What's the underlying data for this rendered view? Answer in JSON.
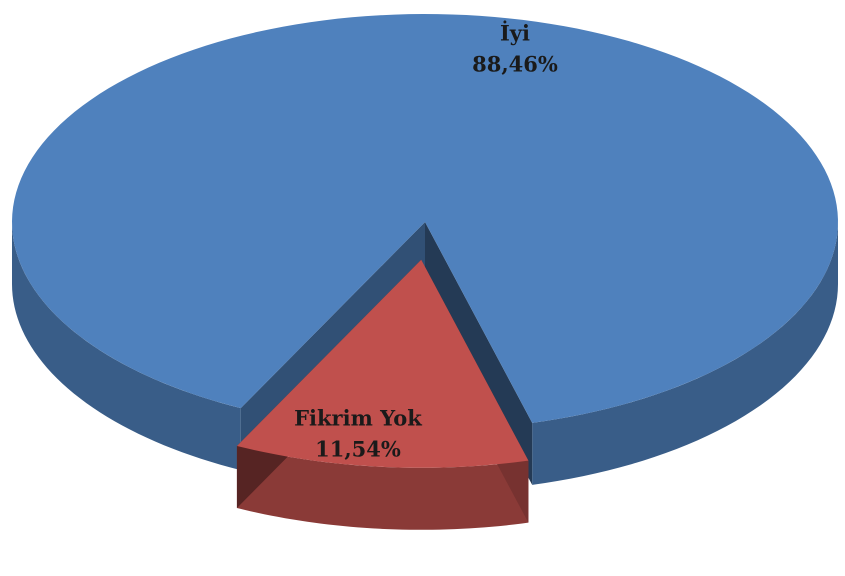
{
  "chart_data": {
    "type": "pie",
    "categories": [
      "İyi",
      "Fikrim Yok"
    ],
    "values": [
      88.46,
      11.54
    ],
    "value_labels": [
      "88,46%",
      "11,54%"
    ],
    "colors": [
      "#4f81bd",
      "#c0504d"
    ]
  }
}
